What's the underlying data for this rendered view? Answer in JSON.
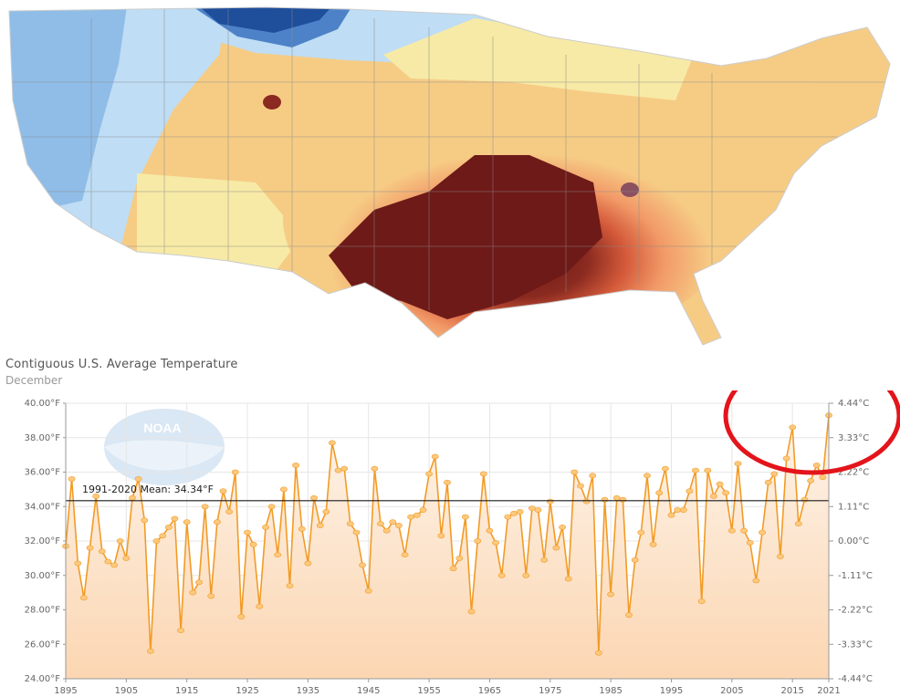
{
  "chart_title": "Contiguous U.S. Average Temperature",
  "chart_subtitle": "December",
  "logo_text": "NOAA",
  "colors": {
    "line": "#f29b26",
    "marker": "#fbc97e",
    "fill_top": "#fdf4ea",
    "fill_bottom": "#fcd6b2",
    "mean_line": "#1a1a1a",
    "annotation": "#e4141b"
  },
  "map": {
    "type": "choropleth",
    "region": "Contiguous United States",
    "palette": [
      "#1f4e9b",
      "#4d82c8",
      "#8fbde8",
      "#bfddf4",
      "#f7eaa6",
      "#f6cc85",
      "#f3a56b",
      "#e3673f",
      "#b7382a",
      "#7e1e1a",
      "#4f1312"
    ]
  },
  "chart_data": {
    "type": "line",
    "title": "Contiguous U.S. Average Temperature",
    "subtitle": "December",
    "ylim": [
      24,
      40
    ],
    "ylim_right": [
      -4.44,
      4.44
    ],
    "y_ticks_left": [
      "24.00°F",
      "26.00°F",
      "28.00°F",
      "30.00°F",
      "32.00°F",
      "34.00°F",
      "36.00°F",
      "38.00°F",
      "40.00°F"
    ],
    "y_ticks_right": [
      "-4.44°C",
      "-3.33°C",
      "-2.22°C",
      "-1.11°C",
      "0.00°C",
      "1.11°C",
      "2.22°C",
      "3.33°C",
      "4.44°C"
    ],
    "x_ticks": [
      "1895",
      "1905",
      "1915",
      "1925",
      "1935",
      "1945",
      "1955",
      "1965",
      "1975",
      "1985",
      "1995",
      "2005",
      "2015",
      "2021"
    ],
    "xlim": [
      1895,
      2021
    ],
    "grid": true,
    "mean": {
      "label": "1991-2020 Mean: 34.34°F",
      "value": 34.34
    },
    "annotation": "red ellipse around highest recent values (2015-2021)",
    "x": [
      1895,
      1896,
      1897,
      1898,
      1899,
      1900,
      1901,
      1902,
      1903,
      1904,
      1905,
      1906,
      1907,
      1908,
      1909,
      1910,
      1911,
      1912,
      1913,
      1914,
      1915,
      1916,
      1917,
      1918,
      1919,
      1920,
      1921,
      1922,
      1923,
      1924,
      1925,
      1926,
      1927,
      1928,
      1929,
      1930,
      1931,
      1932,
      1933,
      1934,
      1935,
      1936,
      1937,
      1938,
      1939,
      1940,
      1941,
      1942,
      1943,
      1944,
      1945,
      1946,
      1947,
      1948,
      1949,
      1950,
      1951,
      1952,
      1953,
      1954,
      1955,
      1956,
      1957,
      1958,
      1959,
      1960,
      1961,
      1962,
      1963,
      1964,
      1965,
      1966,
      1967,
      1968,
      1969,
      1970,
      1971,
      1972,
      1973,
      1974,
      1975,
      1976,
      1977,
      1978,
      1979,
      1980,
      1981,
      1982,
      1983,
      1984,
      1985,
      1986,
      1987,
      1988,
      1989,
      1990,
      1991,
      1992,
      1993,
      1994,
      1995,
      1996,
      1997,
      1998,
      1999,
      2000,
      2001,
      2002,
      2003,
      2004,
      2005,
      2006,
      2007,
      2008,
      2009,
      2010,
      2011,
      2012,
      2013,
      2014,
      2015,
      2016,
      2017,
      2018,
      2019,
      2020,
      2021
    ],
    "values": [
      31.7,
      35.6,
      30.7,
      28.7,
      31.6,
      34.6,
      31.4,
      30.8,
      30.6,
      32.0,
      31.0,
      34.5,
      35.6,
      33.2,
      25.6,
      32.0,
      32.3,
      32.8,
      33.3,
      26.8,
      33.1,
      29.0,
      29.6,
      34.0,
      28.8,
      33.1,
      34.9,
      33.7,
      36.0,
      27.6,
      32.5,
      31.8,
      28.2,
      32.8,
      34.0,
      31.2,
      35.0,
      29.4,
      36.4,
      32.7,
      30.7,
      34.5,
      32.9,
      33.7,
      37.7,
      36.1,
      36.2,
      33.0,
      32.5,
      30.6,
      29.1,
      36.2,
      33.0,
      32.6,
      33.1,
      32.9,
      31.2,
      33.4,
      33.5,
      33.8,
      35.9,
      36.9,
      32.3,
      35.4,
      30.4,
      31.0,
      33.4,
      27.9,
      32.0,
      35.9,
      32.6,
      31.9,
      30.0,
      33.4,
      33.6,
      33.7,
      30.0,
      33.9,
      33.8,
      30.9,
      34.3,
      31.6,
      32.8,
      29.8,
      36.0,
      35.2,
      34.3,
      35.8,
      25.5,
      34.4,
      28.9,
      34.5,
      34.4,
      27.7,
      30.9,
      32.5,
      35.8,
      31.8,
      34.8,
      36.2,
      33.5,
      33.8,
      33.8,
      34.9,
      36.1,
      28.5,
      36.1,
      34.6,
      35.3,
      34.8,
      32.6,
      36.5,
      32.6,
      31.9,
      29.7,
      32.5,
      35.4,
      35.9,
      31.1,
      36.8,
      38.6,
      33.0,
      34.4,
      35.5,
      36.4,
      35.7,
      39.3
    ]
  }
}
